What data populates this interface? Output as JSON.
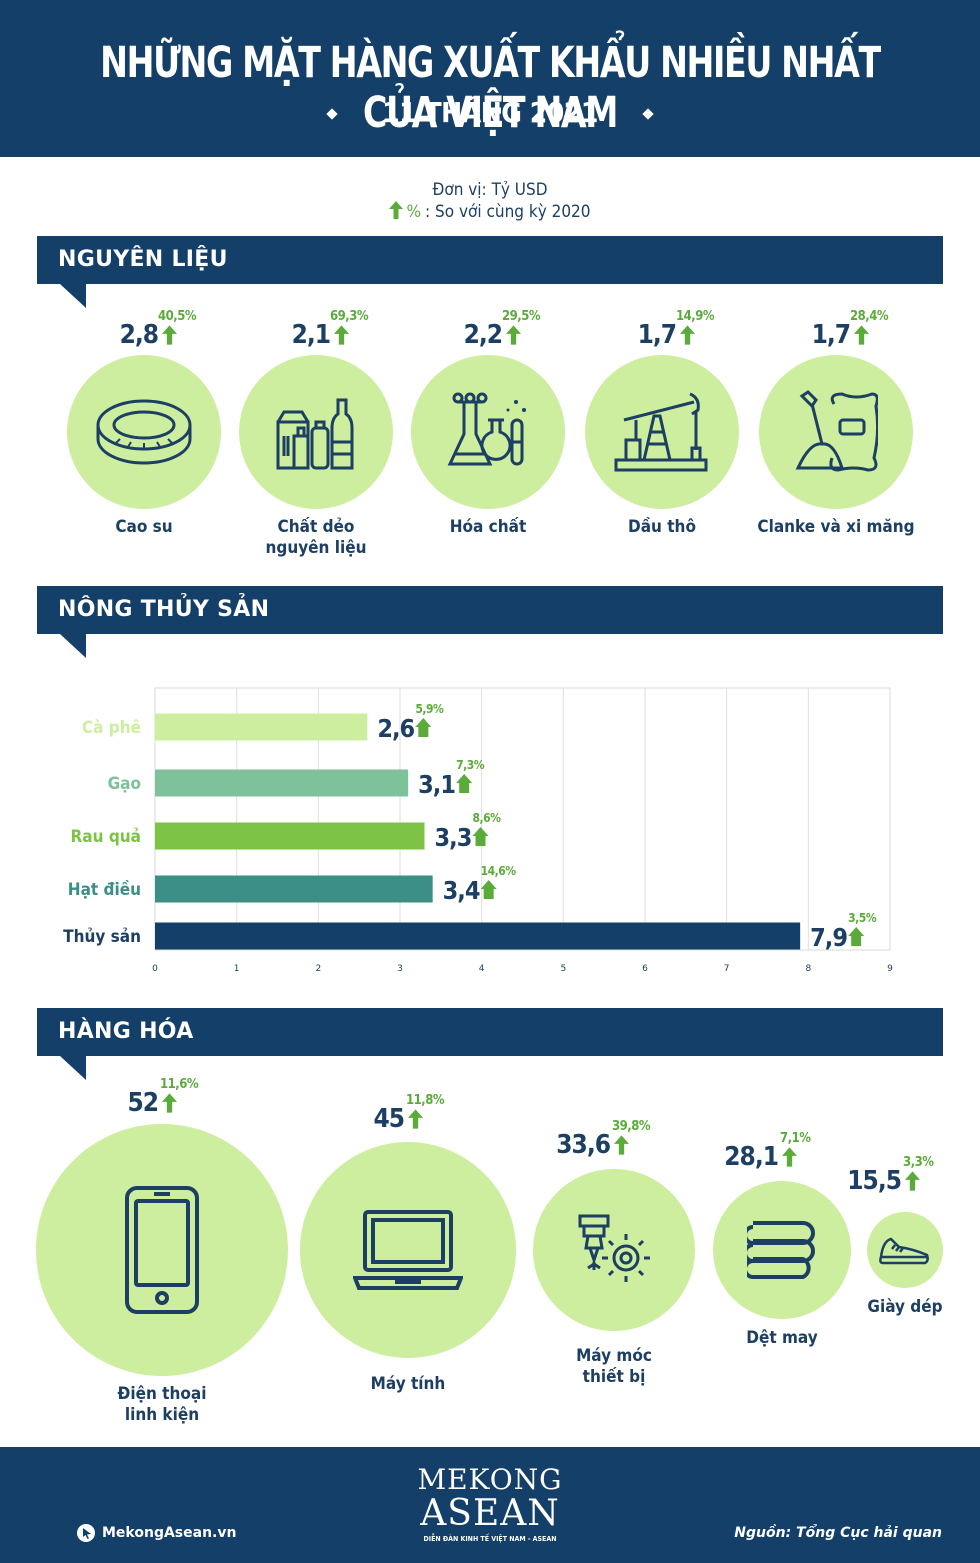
{
  "header": {
    "title": "NHỮNG MẶT HÀNG XUẤT KHẨU NHIỀU NHẤT CỦA VIỆT NAM",
    "subtitle": "11 THÁNG 2021"
  },
  "legend": {
    "unit": "Đơn vị: Tỷ USD",
    "pct_symbol": "%",
    "pct_text": ": So với cùng kỳ 2020"
  },
  "sections": {
    "raw": "NGUYÊN LIỆU",
    "agri": "NÔNG THỦY SẢN",
    "goods": "HÀNG HÓA"
  },
  "raw_items": [
    {
      "value": "2,8",
      "pct": "40,5%",
      "label": "Cao su",
      "icon": "tire-icon"
    },
    {
      "value": "2,1",
      "pct": "69,3%",
      "label": "Chất dẻo\nnguyên liệu",
      "icon": "plastic-products-icon"
    },
    {
      "value": "2,2",
      "pct": "29,5%",
      "label": "Hóa chất",
      "icon": "chemistry-flask-icon"
    },
    {
      "value": "1,7",
      "pct": "14,9%",
      "label": "Dầu thô",
      "icon": "oil-pump-icon"
    },
    {
      "value": "1,7",
      "pct": "28,4%",
      "label": "Clanke và xi măng",
      "icon": "cement-bag-icon"
    }
  ],
  "chart_data": {
    "type": "bar",
    "orientation": "horizontal",
    "categories": [
      "Cà phê",
      "Gạo",
      "Rau quả",
      "Hạt điều",
      "Thủy sản"
    ],
    "values": [
      2.6,
      3.1,
      3.3,
      3.4,
      7.9
    ],
    "value_labels": [
      "2,6",
      "3,1",
      "3,3",
      "3,4",
      "7,9"
    ],
    "pct_labels": [
      "5,9%",
      "7,3%",
      "8,6%",
      "14,6%",
      "3,5%"
    ],
    "colors": [
      "#ccee9e",
      "#7dc29a",
      "#7cc245",
      "#3c8f86",
      "#133f68"
    ],
    "label_colors": [
      "#ccee9e",
      "#7dc29a",
      "#7cc245",
      "#3c8f86",
      "#1c3f63"
    ],
    "xticks": [
      "0",
      "1",
      "2",
      "3",
      "4",
      "5",
      "6",
      "7",
      "8",
      "9"
    ],
    "xlim": [
      0,
      9
    ],
    "grid": true
  },
  "goods_items": [
    {
      "value": "52",
      "pct": "11,6%",
      "label": "Điện thoại\nlinh kiện",
      "icon": "smartphone-icon"
    },
    {
      "value": "45",
      "pct": "11,8%",
      "label": "Máy tính",
      "icon": "laptop-icon"
    },
    {
      "value": "33,6",
      "pct": "39,8%",
      "label": "Máy móc\nthiết bị",
      "icon": "machinery-gear-icon"
    },
    {
      "value": "28,1",
      "pct": "7,1%",
      "label": "Dệt may",
      "icon": "folded-clothes-icon"
    },
    {
      "value": "15,5",
      "pct": "3,3%",
      "label": "Giày dép",
      "icon": "sneaker-icon"
    }
  ],
  "footer": {
    "website": "MekongAsean.vn",
    "logo_line1": "MEKONG",
    "logo_line2": "ASEAN",
    "logo_tagline": "DIỄN ĐÀN KINH TẾ VIỆT NAM - ASEAN",
    "source": "Nguồn: Tổng Cục hải quan"
  },
  "colors": {
    "navy": "#133f68",
    "circle": "#ccee9e",
    "accent_green": "#5bab3b"
  }
}
